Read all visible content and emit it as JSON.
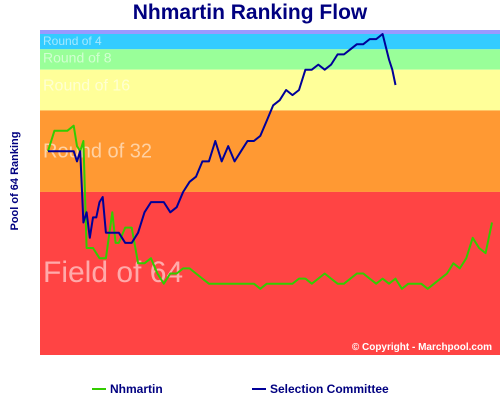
{
  "chart_data": {
    "type": "line",
    "title": "Nhmartin Ranking Flow",
    "ylabel": "Pool of 64 Ranking",
    "xlabel": "",
    "ylim": [
      64,
      1
    ],
    "grid": false,
    "legend_position": "bottom",
    "bands": [
      {
        "label": "Round of 4",
        "from": 1,
        "to": 4,
        "color": "#33ccff"
      },
      {
        "label": "Round of 8",
        "from": 4,
        "to": 8,
        "color": "#99ff99"
      },
      {
        "label": "Round of 16",
        "from": 8,
        "to": 16,
        "color": "#ffff99"
      },
      {
        "label": "Round of 32",
        "from": 16,
        "to": 32,
        "color": "#ff9933"
      },
      {
        "label": "Field of 64",
        "from": 32,
        "to": 64,
        "color": "#ff4444"
      }
    ],
    "top_bar_color": "#9999ff",
    "x": [
      0,
      1,
      2,
      3,
      4,
      5,
      6,
      7,
      8,
      9,
      10,
      11,
      12,
      13,
      14,
      15,
      16,
      17,
      18,
      19,
      20,
      21,
      22,
      23,
      24,
      25,
      26,
      27,
      28,
      29,
      30,
      31,
      32,
      33,
      34,
      35,
      36,
      37,
      38,
      39,
      40,
      41,
      42,
      43,
      44,
      45,
      46,
      47,
      48,
      49,
      50,
      51,
      52,
      53,
      54,
      55,
      56,
      57,
      58,
      59,
      60,
      61,
      62,
      63,
      64,
      65,
      66,
      67,
      68,
      69,
      70,
      71,
      72,
      73,
      74,
      75,
      76,
      77,
      78,
      79,
      80,
      81,
      82,
      83,
      84,
      85,
      86,
      87,
      88,
      89,
      90
    ],
    "series": [
      {
        "name": "Nhmartin",
        "color": "#33cc00",
        "values": [
          24,
          20,
          20,
          20,
          19,
          23,
          24,
          22,
          43,
          43,
          45,
          45,
          36,
          42,
          42,
          39,
          39,
          46,
          46,
          45,
          48,
          50,
          48,
          48,
          47,
          47,
          48,
          49,
          50,
          50,
          50,
          50,
          50,
          50,
          50,
          50,
          51,
          50,
          50,
          50,
          50,
          50,
          49,
          49,
          50,
          49,
          48,
          49,
          50,
          50,
          49,
          48,
          48,
          49,
          50,
          49,
          50,
          49,
          51,
          50,
          50,
          50,
          51,
          50,
          49,
          48,
          46,
          47,
          45,
          41,
          43,
          44,
          38
        ],
        "x": [
          0,
          2,
          4,
          6,
          8,
          9,
          10,
          11,
          12,
          14,
          16,
          18,
          20,
          21,
          22,
          24,
          26,
          28,
          30,
          32,
          34,
          36,
          38,
          40,
          42,
          44,
          46,
          48,
          50,
          52,
          54,
          56,
          58,
          60,
          62,
          64,
          66,
          68,
          70,
          72,
          74,
          76,
          78,
          80,
          82,
          84,
          86,
          88,
          90,
          92,
          94,
          96,
          98,
          100,
          102,
          104,
          106,
          108,
          110,
          112,
          114,
          116,
          118,
          120,
          122,
          124,
          126,
          128,
          130,
          132,
          134,
          136,
          138
        ]
      },
      {
        "name": "Selection Committee",
        "color": "#000099",
        "values": [
          24,
          24,
          24,
          24,
          24,
          26,
          24,
          38,
          36,
          41,
          37,
          37,
          34,
          33,
          40,
          40,
          40,
          42,
          42,
          40,
          36,
          34,
          34,
          34,
          36,
          35,
          32,
          30,
          29,
          26,
          26,
          22,
          26,
          23,
          26,
          24,
          22,
          22,
          21,
          18,
          15,
          14,
          12,
          13,
          12,
          8,
          8,
          7,
          8,
          7,
          5,
          5,
          4,
          3,
          3,
          2,
          2,
          1,
          6,
          8,
          11
        ],
        "x": [
          0,
          2,
          4,
          6,
          8,
          9,
          10,
          11,
          12,
          13,
          14,
          15,
          16,
          17,
          18,
          20,
          22,
          24,
          26,
          28,
          30,
          32,
          34,
          36,
          38,
          40,
          42,
          44,
          46,
          48,
          50,
          52,
          54,
          56,
          58,
          60,
          62,
          64,
          66,
          68,
          70,
          72,
          74,
          76,
          78,
          80,
          82,
          84,
          86,
          88,
          90,
          92,
          94,
          96,
          98,
          100,
          102,
          104,
          106,
          107,
          108
        ]
      }
    ]
  },
  "copyright": "© Copyright - Marchpool.com"
}
